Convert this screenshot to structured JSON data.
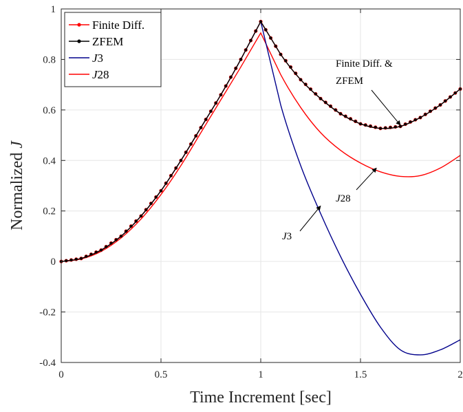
{
  "chart_data": {
    "type": "line",
    "xlabel": "Time Increment [sec]",
    "ylabel": "Normalized J",
    "xlim": [
      0,
      2
    ],
    "ylim": [
      -0.4,
      1
    ],
    "xticks": [
      "0",
      "0.5",
      "1",
      "1.5",
      "2"
    ],
    "yticks": [
      "-0.4",
      "-0.2",
      "0",
      "0.2",
      "0.4",
      "0.6",
      "0.8",
      "1"
    ],
    "grid": true,
    "legend_position": "top-left",
    "series": [
      {
        "name": "Finite Diff.",
        "color": "#ff0000",
        "marker": "dot",
        "x": [
          0,
          0.1,
          0.2,
          0.3,
          0.4,
          0.5,
          0.6,
          0.7,
          0.8,
          0.9,
          1.0,
          1.1,
          1.2,
          1.3,
          1.4,
          1.5,
          1.6,
          1.7,
          1.8,
          1.9,
          2.0
        ],
        "y": [
          0,
          0.012,
          0.045,
          0.1,
          0.18,
          0.28,
          0.4,
          0.53,
          0.66,
          0.8,
          0.95,
          0.82,
          0.72,
          0.645,
          0.585,
          0.545,
          0.527,
          0.535,
          0.57,
          0.62,
          0.683
        ]
      },
      {
        "name": "ZFEM",
        "color": "#000000",
        "marker": "dot",
        "x": [
          0,
          0.1,
          0.2,
          0.3,
          0.4,
          0.5,
          0.6,
          0.7,
          0.8,
          0.9,
          1.0,
          1.1,
          1.2,
          1.3,
          1.4,
          1.5,
          1.6,
          1.7,
          1.8,
          1.9,
          2.0
        ],
        "y": [
          0,
          0.012,
          0.045,
          0.1,
          0.18,
          0.28,
          0.4,
          0.53,
          0.66,
          0.8,
          0.95,
          0.82,
          0.72,
          0.645,
          0.585,
          0.545,
          0.527,
          0.535,
          0.57,
          0.62,
          0.683
        ]
      },
      {
        "name": "J3",
        "color": "#00008b",
        "marker": "none",
        "x": [
          0,
          0.1,
          0.2,
          0.3,
          0.4,
          0.5,
          0.6,
          0.7,
          0.8,
          0.9,
          1.0,
          1.1,
          1.2,
          1.3,
          1.4,
          1.5,
          1.6,
          1.7,
          1.8,
          1.9,
          2.0
        ],
        "y": [
          0,
          0.012,
          0.045,
          0.1,
          0.18,
          0.28,
          0.4,
          0.53,
          0.66,
          0.8,
          0.95,
          0.62,
          0.38,
          0.19,
          0.02,
          -0.13,
          -0.26,
          -0.35,
          -0.37,
          -0.35,
          -0.31
        ]
      },
      {
        "name": "J28",
        "color": "#ff0000",
        "marker": "none",
        "x": [
          0,
          0.1,
          0.2,
          0.3,
          0.4,
          0.5,
          0.6,
          0.7,
          0.8,
          0.9,
          1.0,
          1.1,
          1.2,
          1.3,
          1.4,
          1.5,
          1.6,
          1.7,
          1.8,
          1.9,
          2.0
        ],
        "y": [
          0,
          0.01,
          0.04,
          0.093,
          0.168,
          0.265,
          0.38,
          0.51,
          0.64,
          0.77,
          0.905,
          0.74,
          0.61,
          0.51,
          0.44,
          0.39,
          0.355,
          0.337,
          0.34,
          0.37,
          0.42
        ]
      }
    ],
    "annotations": [
      {
        "text": "Finite Diff. &",
        "text2": "ZFEM",
        "arrow_to": [
          1.7,
          0.54
        ]
      },
      {
        "text": "J28",
        "arrow_to": [
          1.58,
          0.37
        ]
      },
      {
        "text": "J3",
        "arrow_to": [
          1.3,
          0.22
        ]
      }
    ]
  }
}
